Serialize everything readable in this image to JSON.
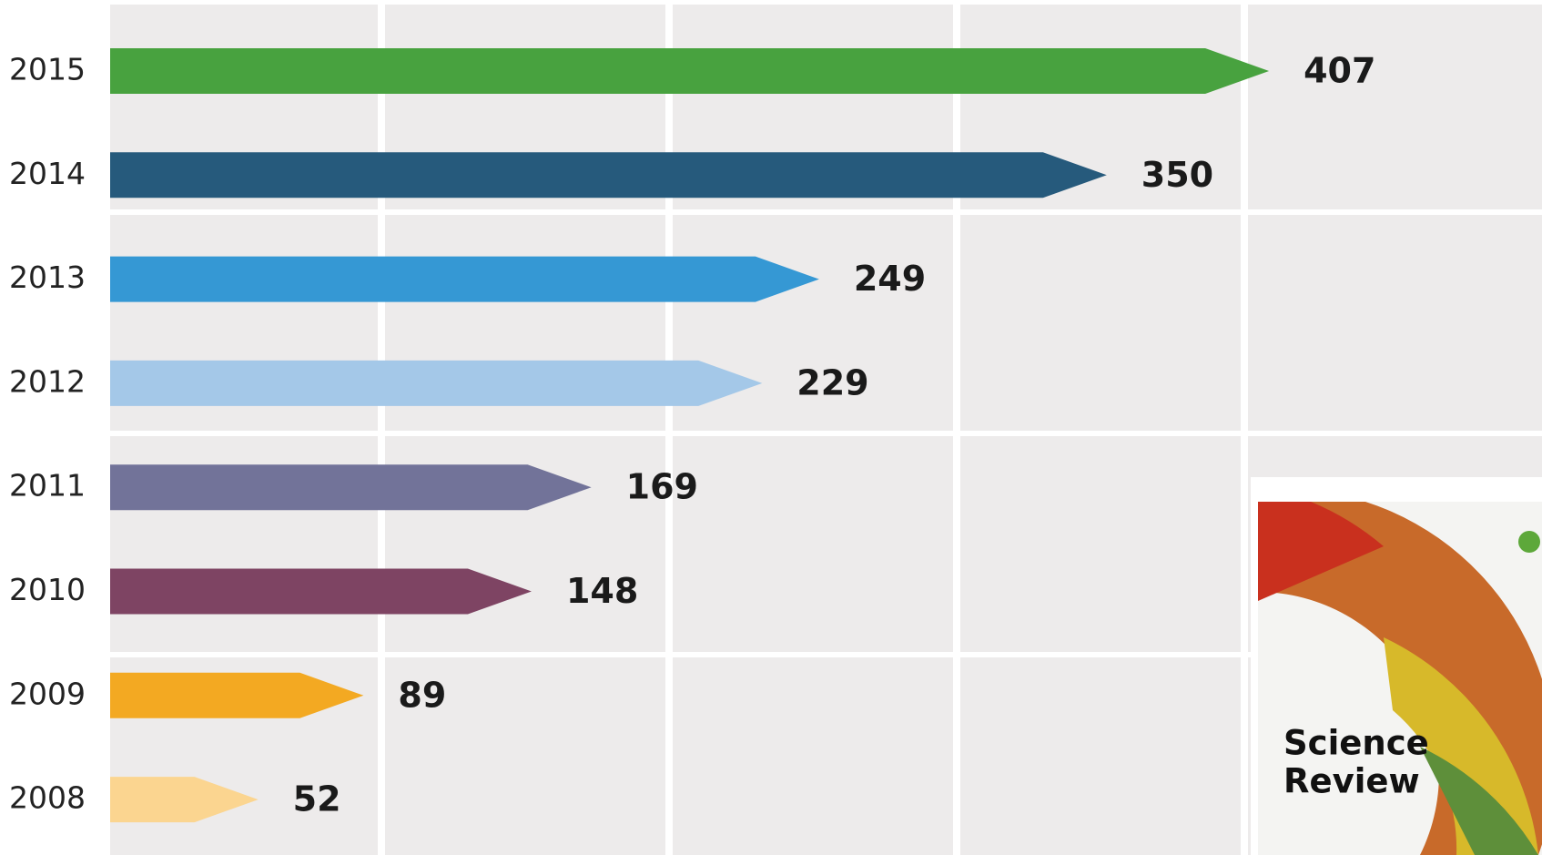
{
  "chart_data": {
    "type": "bar",
    "orientation": "horizontal",
    "categories": [
      "2015",
      "2014",
      "2013",
      "2012",
      "2011",
      "2010",
      "2009",
      "2008"
    ],
    "values": [
      407,
      350,
      249,
      229,
      169,
      148,
      89,
      52
    ],
    "colors": [
      "#48a23f",
      "#265a7c",
      "#3598d4",
      "#a4c8e8",
      "#727399",
      "#7e4463",
      "#f3a922",
      "#fbd590"
    ],
    "xlim": [
      0,
      500
    ],
    "annotation": [
      "Science",
      "Review"
    ]
  }
}
